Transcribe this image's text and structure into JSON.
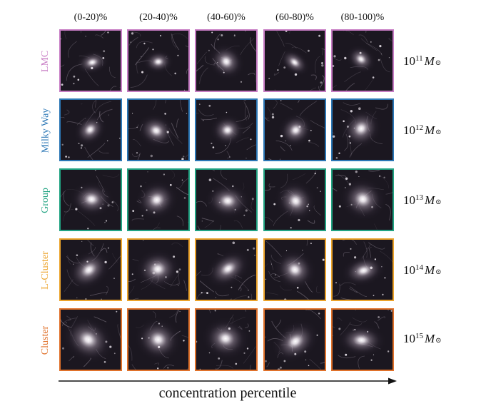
{
  "columns": [
    "(0-20)%",
    "(20-40)%",
    "(40-60)%",
    "(60-80)%",
    "(80-100)%"
  ],
  "rows": [
    {
      "name": "LMC",
      "color": "#c77cc4",
      "mass_base": "10",
      "mass_exp": "11",
      "mass_symbol": "M",
      "mass_sub": "⊙"
    },
    {
      "name": "Milky Way",
      "color": "#2b77b6",
      "mass_base": "10",
      "mass_exp": "12",
      "mass_symbol": "M",
      "mass_sub": "⊙"
    },
    {
      "name": "Group",
      "color": "#21a382",
      "mass_base": "10",
      "mass_exp": "13",
      "mass_symbol": "M",
      "mass_sub": "⊙"
    },
    {
      "name": "L-Cluster",
      "color": "#eca32a",
      "mass_base": "10",
      "mass_exp": "14",
      "mass_symbol": "M",
      "mass_sub": "⊙"
    },
    {
      "name": "Cluster",
      "color": "#e0712a",
      "mass_base": "10",
      "mass_exp": "15",
      "mass_symbol": "M",
      "mass_sub": "⊙"
    }
  ],
  "xaxis_label": "concentration percentile"
}
